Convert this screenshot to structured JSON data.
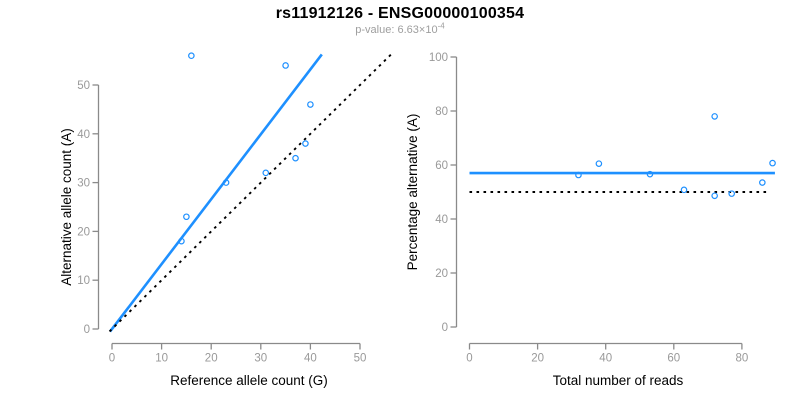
{
  "header": {
    "title": "rs11912126 - ENSG00000100354",
    "subtitle_prefix": "p-value: ",
    "subtitle_value": "6.63",
    "subtitle_times": "×10",
    "subtitle_exponent": "-4"
  },
  "colors": {
    "accent_blue": "#1E90FF",
    "axis_line_gray": "#8a8a8a",
    "tick_label_gray": "#999999",
    "label_black": "#000000",
    "dotted_line_black": "#000000"
  },
  "chart_data": [
    {
      "type": "scatter",
      "panel": "allele-counts",
      "xlabel": "Reference allele count (G)",
      "ylabel": "Alternative allele count (A)",
      "xticks": [
        0,
        10,
        20,
        30,
        40,
        50
      ],
      "yticks": [
        0,
        10,
        20,
        30,
        40,
        50
      ],
      "xlim": [
        0,
        56.5
      ],
      "ylim": [
        0,
        56.5
      ],
      "grid": false,
      "points": [
        [
          14,
          18
        ],
        [
          15,
          23
        ],
        [
          16,
          56
        ],
        [
          23,
          30
        ],
        [
          31,
          32
        ],
        [
          35,
          54
        ],
        [
          37,
          35
        ],
        [
          39,
          38
        ],
        [
          40,
          46
        ]
      ],
      "lines": [
        {
          "name": "fitted-line",
          "style": "solid",
          "color_key": "accent_blue",
          "slope": 1.33,
          "intercept": 0,
          "x_draw": [
            -0.4,
            42.3
          ]
        },
        {
          "name": "identity-line",
          "style": "dotted",
          "color_key": "dotted_line_black",
          "slope": 1,
          "intercept": 0,
          "x_draw": [
            -0.5,
            56.3
          ]
        }
      ]
    },
    {
      "type": "scatter",
      "panel": "percentage-vs-depth",
      "xlabel": "Total number of reads",
      "ylabel": "Percentage alternative (A)",
      "xticks": [
        0,
        20,
        40,
        60,
        80
      ],
      "yticks": [
        0,
        20,
        40,
        60,
        80,
        100
      ],
      "xlim": [
        0,
        90
      ],
      "ylim": [
        0,
        100
      ],
      "grid": false,
      "points": [
        [
          32,
          56.3
        ],
        [
          38,
          60.5
        ],
        [
          53,
          56.6
        ],
        [
          63,
          50.8
        ],
        [
          72,
          48.6
        ],
        [
          72,
          78
        ],
        [
          77,
          49.4
        ],
        [
          86,
          53.5
        ],
        [
          89,
          60.7
        ]
      ],
      "lines": [
        {
          "name": "fitted-mean-line",
          "style": "solid",
          "color_key": "accent_blue",
          "slope": 0,
          "intercept": 57,
          "x_draw": [
            0,
            89.7
          ]
        },
        {
          "name": "null-50pct-line",
          "style": "dotted",
          "color_key": "dotted_line_black",
          "slope": 0,
          "intercept": 50,
          "x_draw": [
            0,
            87.7
          ]
        }
      ]
    }
  ]
}
